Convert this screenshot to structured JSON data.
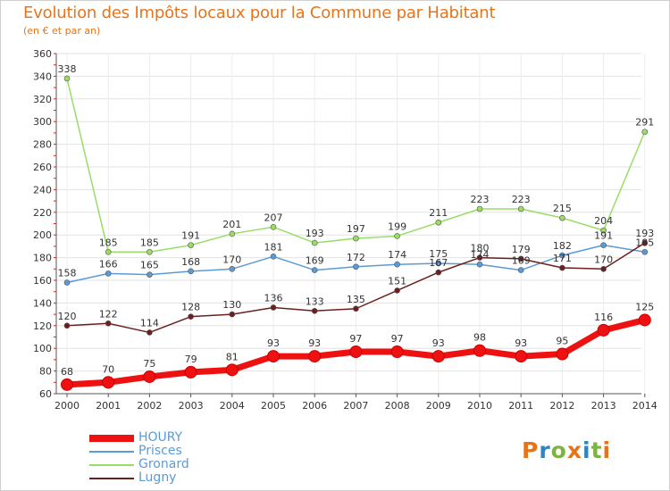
{
  "title": "Evolution des Impôts locaux pour la Commune par Habitant",
  "subtitle": "(en € et par an)",
  "logo": {
    "text": "Proxiti",
    "colors": [
      "#e8741a",
      "#2e86c1",
      "#7cb342",
      "#e8741a",
      "#2e86c1",
      "#7cb342",
      "#e8741a"
    ]
  },
  "chart_data": {
    "type": "line",
    "title": "Evolution des Impôts locaux pour la Commune par Habitant",
    "subtitle": "(en € et par an)",
    "xlabel": "",
    "ylabel": "",
    "ylim": [
      60,
      360
    ],
    "yticks": [
      60,
      80,
      100,
      120,
      140,
      160,
      180,
      200,
      220,
      240,
      260,
      280,
      300,
      320,
      340,
      360
    ],
    "categories": [
      "2000",
      "2001",
      "2002",
      "2003",
      "2004",
      "2005",
      "2006",
      "2007",
      "2008",
      "2009",
      "2010",
      "2011",
      "2012",
      "2013",
      "2014"
    ],
    "legend_position": "bottom-left",
    "grid": true,
    "series": [
      {
        "name": "HOURY",
        "color": "#ee1111",
        "values": [
          68,
          70,
          75,
          79,
          81,
          93,
          93,
          97,
          97,
          93,
          98,
          93,
          95,
          116,
          125
        ],
        "labels": [
          "68",
          "70",
          "75",
          "79",
          "81",
          "93",
          "93",
          "97",
          "97",
          "93",
          "98",
          "93",
          "95",
          "116",
          "125"
        ]
      },
      {
        "name": "Prisces",
        "color": "#5b9bd5",
        "values": [
          158,
          166,
          165,
          168,
          170,
          181,
          169,
          172,
          174,
          175,
          174,
          169,
          182,
          191,
          185
        ],
        "labels": [
          "158",
          "166",
          "165",
          "168",
          "170",
          "181",
          "169",
          "172",
          "174",
          "175",
          "174",
          "169",
          "182",
          "191",
          "185"
        ]
      },
      {
        "name": "Gronard",
        "color": "#99dd66",
        "values": [
          338,
          185,
          185,
          191,
          201,
          207,
          193,
          197,
          199,
          211,
          223,
          223,
          215,
          204,
          291
        ],
        "labels": [
          "338",
          "185",
          "185",
          "191",
          "201",
          "207",
          "193",
          "197",
          "199",
          "211",
          "223",
          "223",
          "215",
          "204",
          "291"
        ]
      },
      {
        "name": "Lugny",
        "color": "#6b1f1f",
        "values": [
          120,
          122,
          114,
          128,
          130,
          136,
          133,
          135,
          151,
          167,
          180,
          179,
          171,
          170,
          193
        ],
        "labels": [
          "120",
          "122",
          "114",
          "128",
          "130",
          "136",
          "133",
          "135",
          "151",
          "167",
          "180",
          "179",
          "171",
          "170",
          "193"
        ]
      }
    ]
  }
}
